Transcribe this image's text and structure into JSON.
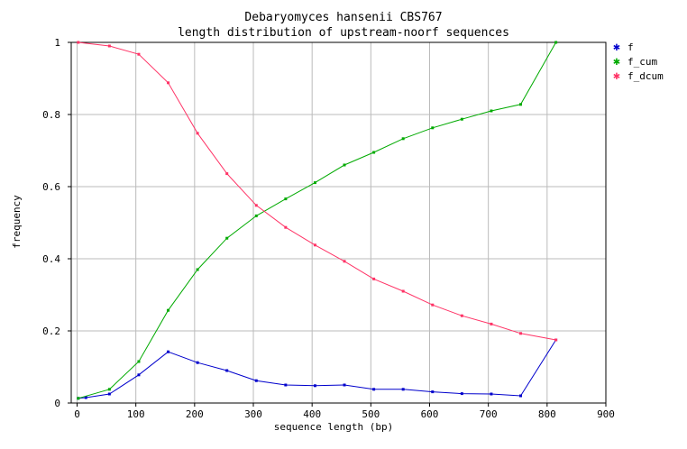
{
  "chart_data": {
    "type": "line",
    "title": "Debaryomyces hansenii CBS767",
    "subtitle": "length distribution of upstream-noorf sequences",
    "xlabel": "sequence length (bp)",
    "ylabel": "frequency",
    "xlim": [
      -10,
      900
    ],
    "ylim": [
      0,
      1
    ],
    "xticks": [
      "0",
      "100",
      "200",
      "300",
      "400",
      "500",
      "600",
      "700",
      "800",
      "900"
    ],
    "yticks": [
      "0",
      "0.2",
      "0.4",
      "0.6",
      "0.8",
      "1"
    ],
    "grid": true,
    "legend_position": "right",
    "series": [
      {
        "name": "f",
        "color": "#0000cc",
        "x": [
          2,
          15,
          55,
          105,
          155,
          205,
          255,
          305,
          355,
          405,
          455,
          505,
          555,
          605,
          655,
          705,
          755,
          815
        ],
        "y": [
          0.013,
          0.015,
          0.025,
          0.078,
          0.142,
          0.112,
          0.09,
          0.062,
          0.05,
          0.048,
          0.05,
          0.038,
          0.038,
          0.031,
          0.026,
          0.025,
          0.02,
          0.175
        ]
      },
      {
        "name": "f_cum",
        "color": "#00aa00",
        "x": [
          2,
          55,
          105,
          155,
          205,
          255,
          305,
          355,
          405,
          455,
          505,
          555,
          605,
          655,
          705,
          755,
          815
        ],
        "y": [
          0.013,
          0.038,
          0.115,
          0.257,
          0.37,
          0.457,
          0.519,
          0.566,
          0.611,
          0.66,
          0.695,
          0.733,
          0.763,
          0.787,
          0.81,
          0.828,
          1.0
        ]
      },
      {
        "name": "f_dcum",
        "color": "#ff3366",
        "x": [
          2,
          55,
          105,
          155,
          205,
          255,
          305,
          355,
          405,
          455,
          505,
          555,
          605,
          655,
          705,
          755,
          815
        ],
        "y": [
          1.0,
          0.99,
          0.967,
          0.888,
          0.748,
          0.636,
          0.548,
          0.487,
          0.438,
          0.393,
          0.344,
          0.31,
          0.272,
          0.242,
          0.219,
          0.193,
          0.175
        ]
      }
    ]
  }
}
